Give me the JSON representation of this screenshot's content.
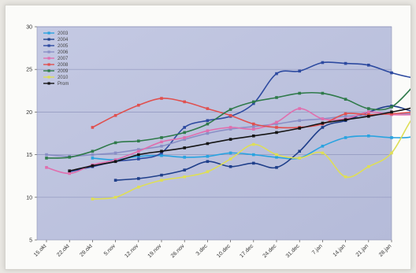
{
  "chart_data": {
    "type": "line",
    "title": "",
    "xlabel": "",
    "ylabel": "",
    "ylim": [
      5,
      30
    ],
    "yticks": [
      5,
      10,
      15,
      20,
      25,
      30
    ],
    "categories": [
      "15.okt",
      "22.okt",
      "29.okt",
      "5.nov",
      "12.nov",
      "19.nov",
      "26.nov",
      "3.dec",
      "10.dec",
      "17.dec",
      "24.dec",
      "31.dec",
      "7.jan",
      "14.jan",
      "21.jan",
      "28.jan"
    ],
    "grid": "horizontal",
    "legend_position": "upper-left inside plot",
    "series": [
      {
        "name": "2003",
        "color": "#29a3e0",
        "x": [
          3,
          4,
          5,
          6,
          7,
          8,
          9,
          10,
          11,
          12,
          13,
          14,
          15,
          16,
          17,
          18
        ],
        "values": [
          14.6,
          14.4,
          14.8,
          14.9,
          14.7,
          14.8,
          15.2,
          15.0,
          14.7,
          14.6,
          16.0,
          17.0,
          17.2,
          17.0,
          17.2,
          18.8
        ]
      },
      {
        "name": "2004",
        "color": "#1f3f8a",
        "x": [
          4,
          5,
          6,
          7,
          8,
          9,
          10,
          11,
          12,
          13,
          14,
          15,
          16,
          17,
          18
        ],
        "values": [
          12.0,
          12.2,
          12.6,
          13.2,
          14.2,
          13.6,
          14.0,
          13.5,
          15.4,
          18.2,
          19.0,
          20.0,
          20.7,
          20.0,
          19.5
        ]
      },
      {
        "name": "2005",
        "color": "#2d4aa0",
        "x": [
          2,
          3,
          4,
          5,
          6,
          7,
          8,
          9,
          10,
          11,
          12,
          13,
          14,
          15,
          16,
          17,
          18
        ],
        "values": [
          13.0,
          13.6,
          14.2,
          14.5,
          15.2,
          18.2,
          19.0,
          19.5,
          21.0,
          24.5,
          24.8,
          25.8,
          25.7,
          25.5,
          24.6,
          24.0,
          24.1
        ]
      },
      {
        "name": "2006",
        "color": "#8a8fc6",
        "x": [
          1,
          2,
          3,
          4,
          5,
          6,
          7,
          8,
          9,
          10,
          11,
          12,
          13,
          14,
          15,
          16,
          17,
          18
        ],
        "values": [
          15.0,
          14.8,
          15.0,
          15.2,
          15.6,
          16.0,
          16.8,
          17.5,
          18.0,
          18.3,
          18.6,
          19.0,
          19.2,
          19.5,
          19.6,
          19.8,
          19.8,
          19.8
        ]
      },
      {
        "name": "2007",
        "color": "#e06fae",
        "x": [
          1,
          2,
          3,
          4,
          5,
          6,
          7,
          8,
          9,
          10,
          11,
          12,
          13,
          14,
          15,
          16,
          17
        ],
        "values": [
          13.5,
          12.8,
          13.8,
          14.4,
          15.4,
          16.5,
          17.0,
          17.8,
          18.2,
          18.0,
          18.8,
          20.4,
          19.2,
          19.2,
          20.0,
          19.7,
          19.7
        ]
      },
      {
        "name": "2008",
        "color": "#e0504f",
        "x": [
          3,
          4,
          5,
          6,
          7,
          8,
          9,
          10,
          11,
          12,
          13,
          14,
          15,
          16,
          17
        ],
        "values": [
          18.2,
          19.6,
          20.8,
          21.6,
          21.2,
          20.4,
          19.6,
          18.6,
          18.2,
          18.2,
          18.6,
          19.8,
          19.7,
          19.8,
          20.0
        ]
      },
      {
        "name": "2009",
        "color": "#2f7a4a",
        "x": [
          1,
          2,
          3,
          4,
          5,
          6,
          7,
          8,
          9,
          10,
          11,
          12,
          13,
          14,
          15,
          16,
          17
        ],
        "values": [
          14.6,
          14.7,
          15.4,
          16.4,
          16.6,
          17.0,
          17.6,
          18.6,
          20.3,
          21.2,
          21.7,
          22.2,
          22.2,
          21.5,
          20.4,
          20.6,
          23.2
        ]
      },
      {
        "name": "2010",
        "color": "#dede57",
        "x": [
          3,
          4,
          5,
          6,
          7,
          8,
          9,
          10,
          11,
          12,
          13,
          14,
          15,
          16,
          17,
          18
        ],
        "values": [
          9.8,
          10.0,
          11.2,
          12.0,
          12.4,
          13.0,
          14.5,
          16.2,
          15.0,
          14.6,
          15.2,
          12.4,
          13.6,
          15.2,
          19.6,
          21.2
        ]
      },
      {
        "name": "Prom",
        "color": "#151515",
        "x": [
          2,
          3,
          4,
          5,
          6,
          7,
          8,
          9,
          10,
          11,
          12,
          13,
          14,
          15,
          16,
          17,
          18
        ],
        "values": [
          13.1,
          13.7,
          14.2,
          15.0,
          15.4,
          15.8,
          16.3,
          16.8,
          17.2,
          17.6,
          18.1,
          18.7,
          19.1,
          19.5,
          20.0,
          20.6,
          21.8
        ]
      }
    ]
  }
}
